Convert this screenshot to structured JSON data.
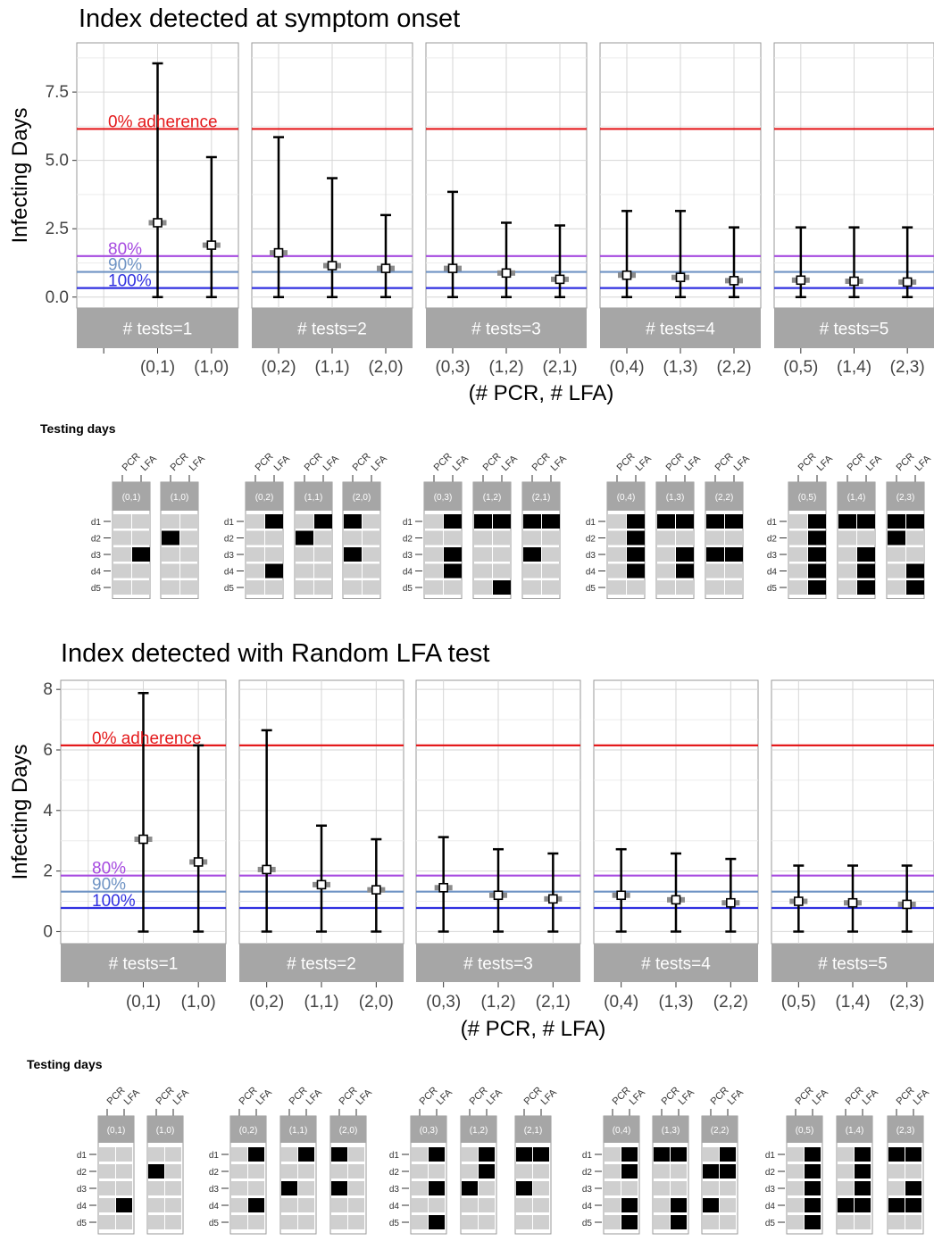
{
  "chart_data": [
    {
      "type": "scatter",
      "title": "Index detected at symptom onset",
      "xlabel": "(# PCR, # LFA)",
      "ylabel": "Infecting Days",
      "ylim": [
        -0.4,
        9.3
      ],
      "yticks": [
        0.0,
        2.5,
        5.0,
        7.5
      ],
      "ytick_labels": [
        "0.0",
        "2.5",
        "5.0",
        "7.5"
      ],
      "grid": true,
      "reference_lines": [
        {
          "label": "0% adherence",
          "y": 6.15,
          "color": "#e41a1c"
        },
        {
          "label": "80%",
          "y": 1.5,
          "color": "#a64ae0"
        },
        {
          "label": "90%",
          "y": 0.92,
          "color": "#6f93c4"
        },
        {
          "label": "100%",
          "y": 0.33,
          "color": "#3030e0"
        }
      ],
      "panels": [
        {
          "label": "# tests=1",
          "categories": [
            "(0,1)",
            "(1,0)"
          ],
          "points": [
            {
              "x": "(0,1)",
              "y": 2.72,
              "low": 0,
              "high": 8.55
            },
            {
              "x": "(1,0)",
              "y": 1.9,
              "low": 0,
              "high": 5.12
            }
          ]
        },
        {
          "label": "# tests=2",
          "categories": [
            "(0,2)",
            "(1,1)",
            "(2,0)"
          ],
          "points": [
            {
              "x": "(0,2)",
              "y": 1.62,
              "low": 0,
              "high": 5.85
            },
            {
              "x": "(1,1)",
              "y": 1.15,
              "low": 0,
              "high": 4.35
            },
            {
              "x": "(2,0)",
              "y": 1.05,
              "low": 0,
              "high": 3.0
            }
          ]
        },
        {
          "label": "# tests=3",
          "categories": [
            "(0,3)",
            "(1,2)",
            "(2,1)"
          ],
          "points": [
            {
              "x": "(0,3)",
              "y": 1.05,
              "low": 0,
              "high": 3.85
            },
            {
              "x": "(1,2)",
              "y": 0.88,
              "low": 0,
              "high": 2.72
            },
            {
              "x": "(2,1)",
              "y": 0.65,
              "low": 0,
              "high": 2.62
            }
          ]
        },
        {
          "label": "# tests=4",
          "categories": [
            "(0,4)",
            "(1,3)",
            "(2,2)"
          ],
          "points": [
            {
              "x": "(0,4)",
              "y": 0.8,
              "low": 0,
              "high": 3.15
            },
            {
              "x": "(1,3)",
              "y": 0.72,
              "low": 0,
              "high": 3.15
            },
            {
              "x": "(2,2)",
              "y": 0.6,
              "low": 0,
              "high": 2.55
            }
          ]
        },
        {
          "label": "# tests=5",
          "categories": [
            "(0,5)",
            "(1,4)",
            "(2,3)"
          ],
          "points": [
            {
              "x": "(0,5)",
              "y": 0.62,
              "low": 0,
              "high": 2.55
            },
            {
              "x": "(1,4)",
              "y": 0.58,
              "low": 0,
              "high": 2.55
            },
            {
              "x": "(2,3)",
              "y": 0.55,
              "low": 0,
              "high": 2.55
            }
          ]
        }
      ],
      "schedule": {
        "title": "Testing days",
        "columns": [
          "PCR",
          "LFA"
        ],
        "days": [
          "d1",
          "d2",
          "d3",
          "d4",
          "d5"
        ],
        "groups": [
          [
            {
              "label": "(0,1)",
              "tests": [
                [
                  3,
                  "LFA"
                ]
              ]
            },
            {
              "label": "(1,0)",
              "tests": [
                [
                  2,
                  "PCR"
                ]
              ]
            }
          ],
          [
            {
              "label": "(0,2)",
              "tests": [
                [
                  1,
                  "LFA"
                ],
                [
                  4,
                  "LFA"
                ]
              ]
            },
            {
              "label": "(1,1)",
              "tests": [
                [
                  1,
                  "LFA"
                ],
                [
                  2,
                  "PCR"
                ]
              ]
            },
            {
              "label": "(2,0)",
              "tests": [
                [
                  1,
                  "PCR"
                ],
                [
                  3,
                  "PCR"
                ]
              ]
            }
          ],
          [
            {
              "label": "(0,3)",
              "tests": [
                [
                  1,
                  "LFA"
                ],
                [
                  3,
                  "LFA"
                ],
                [
                  4,
                  "LFA"
                ]
              ]
            },
            {
              "label": "(1,2)",
              "tests": [
                [
                  1,
                  "PCR"
                ],
                [
                  1,
                  "LFA"
                ],
                [
                  5,
                  "LFA"
                ]
              ]
            },
            {
              "label": "(2,1)",
              "tests": [
                [
                  1,
                  "PCR"
                ],
                [
                  1,
                  "LFA"
                ],
                [
                  3,
                  "PCR"
                ]
              ]
            }
          ],
          [
            {
              "label": "(0,4)",
              "tests": [
                [
                  1,
                  "LFA"
                ],
                [
                  2,
                  "LFA"
                ],
                [
                  3,
                  "LFA"
                ],
                [
                  4,
                  "LFA"
                ]
              ]
            },
            {
              "label": "(1,3)",
              "tests": [
                [
                  1,
                  "PCR"
                ],
                [
                  1,
                  "LFA"
                ],
                [
                  3,
                  "LFA"
                ],
                [
                  4,
                  "LFA"
                ]
              ]
            },
            {
              "label": "(2,2)",
              "tests": [
                [
                  1,
                  "PCR"
                ],
                [
                  1,
                  "LFA"
                ],
                [
                  3,
                  "PCR"
                ],
                [
                  3,
                  "LFA"
                ]
              ]
            }
          ],
          [
            {
              "label": "(0,5)",
              "tests": [
                [
                  1,
                  "LFA"
                ],
                [
                  2,
                  "LFA"
                ],
                [
                  3,
                  "LFA"
                ],
                [
                  4,
                  "LFA"
                ],
                [
                  5,
                  "LFA"
                ]
              ]
            },
            {
              "label": "(1,4)",
              "tests": [
                [
                  1,
                  "PCR"
                ],
                [
                  1,
                  "LFA"
                ],
                [
                  3,
                  "LFA"
                ],
                [
                  4,
                  "LFA"
                ],
                [
                  5,
                  "LFA"
                ]
              ]
            },
            {
              "label": "(2,3)",
              "tests": [
                [
                  1,
                  "PCR"
                ],
                [
                  1,
                  "LFA"
                ],
                [
                  2,
                  "PCR"
                ],
                [
                  4,
                  "LFA"
                ],
                [
                  5,
                  "LFA"
                ]
              ]
            }
          ]
        ]
      }
    },
    {
      "type": "scatter",
      "title": "Index detected with Random LFA test",
      "xlabel": "(# PCR, # LFA)",
      "ylabel": "Infecting Days",
      "ylim": [
        -0.4,
        8.3
      ],
      "yticks": [
        0,
        2,
        4,
        6,
        8
      ],
      "ytick_labels": [
        "0",
        "2",
        "4",
        "6",
        "8"
      ],
      "grid": true,
      "reference_lines": [
        {
          "label": "0% adherence",
          "y": 6.15,
          "color": "#e41a1c"
        },
        {
          "label": "80%",
          "y": 1.85,
          "color": "#a64ae0"
        },
        {
          "label": "90%",
          "y": 1.32,
          "color": "#6f93c4"
        },
        {
          "label": "100%",
          "y": 0.78,
          "color": "#3030e0"
        }
      ],
      "panels": [
        {
          "label": "# tests=1",
          "categories": [
            "(0,1)",
            "(1,0)"
          ],
          "points": [
            {
              "x": "(0,1)",
              "y": 3.05,
              "low": 0,
              "high": 7.88
            },
            {
              "x": "(1,0)",
              "y": 2.3,
              "low": 0,
              "high": 6.15
            }
          ]
        },
        {
          "label": "# tests=2",
          "categories": [
            "(0,2)",
            "(1,1)",
            "(2,0)"
          ],
          "points": [
            {
              "x": "(0,2)",
              "y": 2.05,
              "low": 0,
              "high": 6.65
            },
            {
              "x": "(1,1)",
              "y": 1.55,
              "low": 0,
              "high": 3.5
            },
            {
              "x": "(2,0)",
              "y": 1.38,
              "low": 0,
              "high": 3.05
            }
          ]
        },
        {
          "label": "# tests=3",
          "categories": [
            "(0,3)",
            "(1,2)",
            "(2,1)"
          ],
          "points": [
            {
              "x": "(0,3)",
              "y": 1.45,
              "low": 0,
              "high": 3.12
            },
            {
              "x": "(1,2)",
              "y": 1.2,
              "low": 0,
              "high": 2.72
            },
            {
              "x": "(2,1)",
              "y": 1.08,
              "low": 0,
              "high": 2.58
            }
          ]
        },
        {
          "label": "# tests=4",
          "categories": [
            "(0,4)",
            "(1,3)",
            "(2,2)"
          ],
          "points": [
            {
              "x": "(0,4)",
              "y": 1.2,
              "low": 0,
              "high": 2.72
            },
            {
              "x": "(1,3)",
              "y": 1.05,
              "low": 0,
              "high": 2.58
            },
            {
              "x": "(2,2)",
              "y": 0.95,
              "low": 0,
              "high": 2.4
            }
          ]
        },
        {
          "label": "# tests=5",
          "categories": [
            "(0,5)",
            "(1,4)",
            "(2,3)"
          ],
          "points": [
            {
              "x": "(0,5)",
              "y": 1.0,
              "low": 0,
              "high": 2.18
            },
            {
              "x": "(1,4)",
              "y": 0.95,
              "low": 0,
              "high": 2.18
            },
            {
              "x": "(2,3)",
              "y": 0.9,
              "low": 0,
              "high": 2.18
            }
          ]
        }
      ],
      "schedule": {
        "title": "Testing days",
        "columns": [
          "PCR",
          "LFA"
        ],
        "days": [
          "d1",
          "d2",
          "d3",
          "d4",
          "d5"
        ],
        "groups": [
          [
            {
              "label": "(0,1)",
              "tests": [
                [
                  4,
                  "LFA"
                ]
              ]
            },
            {
              "label": "(1,0)",
              "tests": [
                [
                  2,
                  "PCR"
                ]
              ]
            }
          ],
          [
            {
              "label": "(0,2)",
              "tests": [
                [
                  1,
                  "LFA"
                ],
                [
                  4,
                  "LFA"
                ]
              ]
            },
            {
              "label": "(1,1)",
              "tests": [
                [
                  1,
                  "LFA"
                ],
                [
                  3,
                  "PCR"
                ]
              ]
            },
            {
              "label": "(2,0)",
              "tests": [
                [
                  1,
                  "PCR"
                ],
                [
                  3,
                  "PCR"
                ]
              ]
            }
          ],
          [
            {
              "label": "(0,3)",
              "tests": [
                [
                  1,
                  "LFA"
                ],
                [
                  3,
                  "LFA"
                ],
                [
                  5,
                  "LFA"
                ]
              ]
            },
            {
              "label": "(1,2)",
              "tests": [
                [
                  1,
                  "LFA"
                ],
                [
                  2,
                  "LFA"
                ],
                [
                  3,
                  "PCR"
                ]
              ]
            },
            {
              "label": "(2,1)",
              "tests": [
                [
                  1,
                  "PCR"
                ],
                [
                  1,
                  "LFA"
                ],
                [
                  3,
                  "PCR"
                ]
              ]
            }
          ],
          [
            {
              "label": "(0,4)",
              "tests": [
                [
                  1,
                  "LFA"
                ],
                [
                  2,
                  "LFA"
                ],
                [
                  4,
                  "LFA"
                ],
                [
                  5,
                  "LFA"
                ]
              ]
            },
            {
              "label": "(1,3)",
              "tests": [
                [
                  1,
                  "PCR"
                ],
                [
                  1,
                  "LFA"
                ],
                [
                  4,
                  "LFA"
                ],
                [
                  5,
                  "LFA"
                ]
              ]
            },
            {
              "label": "(2,2)",
              "tests": [
                [
                  1,
                  "LFA"
                ],
                [
                  2,
                  "PCR"
                ],
                [
                  2,
                  "LFA"
                ],
                [
                  4,
                  "PCR"
                ]
              ]
            }
          ],
          [
            {
              "label": "(0,5)",
              "tests": [
                [
                  1,
                  "LFA"
                ],
                [
                  2,
                  "LFA"
                ],
                [
                  3,
                  "LFA"
                ],
                [
                  4,
                  "LFA"
                ],
                [
                  5,
                  "LFA"
                ]
              ]
            },
            {
              "label": "(1,4)",
              "tests": [
                [
                  1,
                  "LFA"
                ],
                [
                  2,
                  "LFA"
                ],
                [
                  3,
                  "LFA"
                ],
                [
                  4,
                  "PCR"
                ],
                [
                  4,
                  "LFA"
                ]
              ]
            },
            {
              "label": "(2,3)",
              "tests": [
                [
                  1,
                  "PCR"
                ],
                [
                  1,
                  "LFA"
                ],
                [
                  3,
                  "LFA"
                ],
                [
                  4,
                  "PCR"
                ],
                [
                  4,
                  "LFA"
                ]
              ]
            }
          ]
        ]
      }
    }
  ]
}
